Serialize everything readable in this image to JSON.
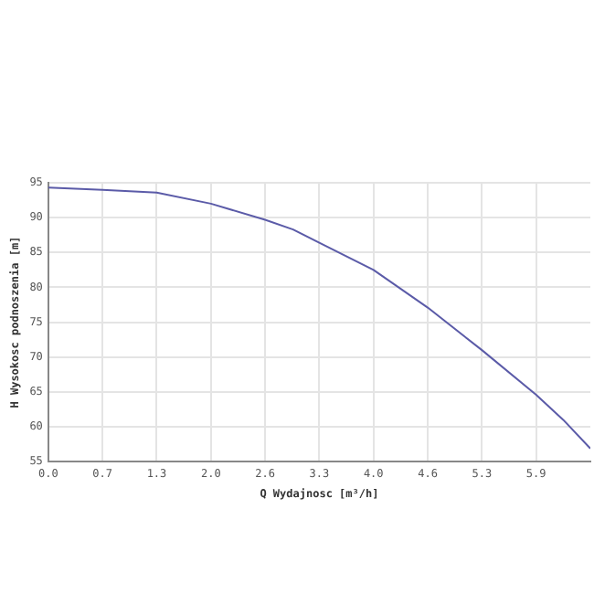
{
  "chart_data": {
    "type": "line",
    "xlabel": "Q Wydajnosc [m³/h]",
    "ylabel": "H Wysokosc podnoszenia [m]",
    "x": [
      0,
      0.66,
      1.32,
      1.98,
      2.64,
      2.98,
      3.3,
      3.96,
      4.62,
      5.28,
      5.94,
      6.27,
      6.6
    ],
    "series": [
      {
        "color": "#5b5ba8",
        "values": [
          94.3,
          94.0,
          93.6,
          92.0,
          89.7,
          88.3,
          86.4,
          82.5,
          77.1,
          71.0,
          64.6,
          61.0,
          56.9
        ]
      }
    ],
    "xlim": [
      0,
      6.6
    ],
    "xticks": [
      {
        "value": 0,
        "label": "0.0"
      },
      {
        "value": 0.66,
        "label": "0.7"
      },
      {
        "value": 1.32,
        "label": "1.3"
      },
      {
        "value": 1.98,
        "label": "2.0"
      },
      {
        "value": 2.64,
        "label": "2.6"
      },
      {
        "value": 3.3,
        "label": "3.3"
      },
      {
        "value": 3.96,
        "label": "4.0"
      },
      {
        "value": 4.62,
        "label": "4.6"
      },
      {
        "value": 5.28,
        "label": "5.3"
      },
      {
        "value": 5.94,
        "label": "5.9"
      }
    ],
    "ylim": [
      55,
      95
    ],
    "yticks": [
      55,
      60,
      65,
      70,
      75,
      80,
      85,
      90,
      95
    ],
    "grid": true,
    "legend": false,
    "marker": "none",
    "line_style": "solid"
  }
}
